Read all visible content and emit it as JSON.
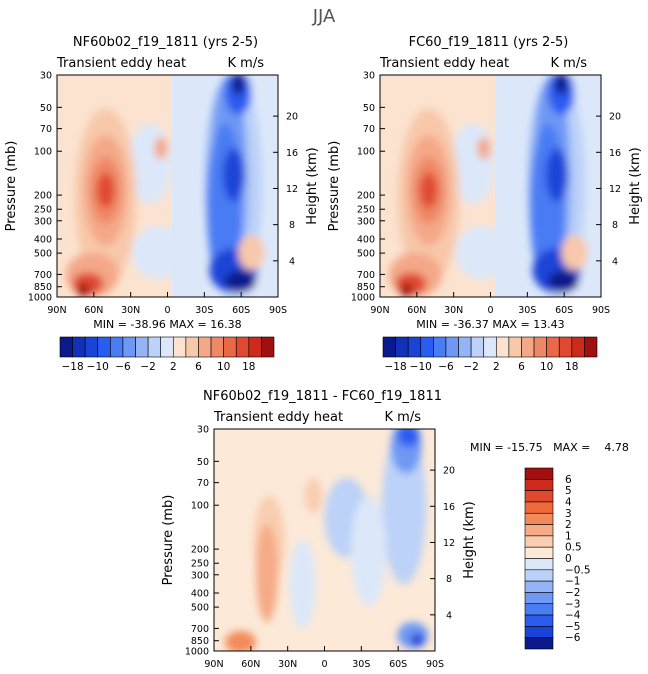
{
  "figure_title": "JJA",
  "chart_data": [
    {
      "type": "heatmap",
      "title": "NF60b02_f19_1811 (yrs 2-5)",
      "variable": "Transient eddy heat",
      "units": "K m/s",
      "ylabel": "Pressure (mb)",
      "y2label": "Height (km)",
      "x_ticks": [
        "90N",
        "60N",
        "30N",
        "0",
        "30S",
        "60S",
        "90S"
      ],
      "y_ticks": [
        30,
        50,
        70,
        100,
        200,
        250,
        300,
        400,
        500,
        700,
        850,
        1000
      ],
      "y2_ticks": [
        4,
        8,
        12,
        16,
        20
      ],
      "min": -38.96,
      "max": 16.38,
      "stats": "MIN = -38.96   MAX = 16.38"
    },
    {
      "type": "heatmap",
      "title": "FC60_f19_1811 (yrs 2-5)",
      "variable": "Transient eddy heat",
      "units": "K m/s",
      "ylabel": "Pressure (mb)",
      "y2label": "Height (km)",
      "x_ticks": [
        "90N",
        "60N",
        "30N",
        "0",
        "30S",
        "60S",
        "90S"
      ],
      "y_ticks": [
        30,
        50,
        70,
        100,
        200,
        250,
        300,
        400,
        500,
        700,
        850,
        1000
      ],
      "y2_ticks": [
        4,
        8,
        12,
        16,
        20
      ],
      "min": -36.37,
      "max": 13.43,
      "stats": "MIN = -36.37   MAX = 13.43"
    },
    {
      "type": "heatmap",
      "title": "NF60b02_f19_1811 - FC60_f19_1811",
      "variable": "Transient eddy heat",
      "units": "K m/s",
      "ylabel": "Pressure (mb)",
      "y2label": "Height (km)",
      "x_ticks": [
        "90N",
        "60N",
        "30N",
        "0",
        "30S",
        "60S",
        "90S"
      ],
      "y_ticks": [
        30,
        50,
        70,
        100,
        200,
        250,
        300,
        400,
        500,
        700,
        850,
        1000
      ],
      "y2_ticks": [
        4,
        8,
        12,
        16,
        20
      ],
      "min": -15.75,
      "max": 4.78,
      "stats": "MIN = -15.75   MAX =    4.78"
    }
  ],
  "colorbar_top": {
    "labels": [
      "-18",
      "-10",
      "-6",
      "-2",
      "2",
      "6",
      "10",
      "18"
    ],
    "colors": [
      "#0a1a8c",
      "#1230b8",
      "#1a44d8",
      "#2a5cf0",
      "#4a7cf4",
      "#6e98f4",
      "#94b4f6",
      "#bcd2f8",
      "#dce8fa",
      "#fbe3d0",
      "#f8c8aa",
      "#f4a888",
      "#ee8866",
      "#e86848",
      "#e04830",
      "#cc2a1a",
      "#a01010"
    ]
  },
  "colorbar_diff": {
    "labels": [
      "6",
      "5",
      "4",
      "3",
      "2",
      "1",
      "0.5",
      "0",
      "-0.5",
      "-1",
      "-2",
      "-3",
      "-4",
      "-5",
      "-6"
    ],
    "colors": [
      "#a01010",
      "#cc2a1a",
      "#e04830",
      "#ee6a3a",
      "#f48a5a",
      "#f6aa86",
      "#f9cdb0",
      "#fce9d8",
      "#dce8fa",
      "#bcd2f8",
      "#94b4f6",
      "#6e98f4",
      "#4a7cf4",
      "#2a5cf0",
      "#1a44d8",
      "#0a1a8c"
    ]
  }
}
